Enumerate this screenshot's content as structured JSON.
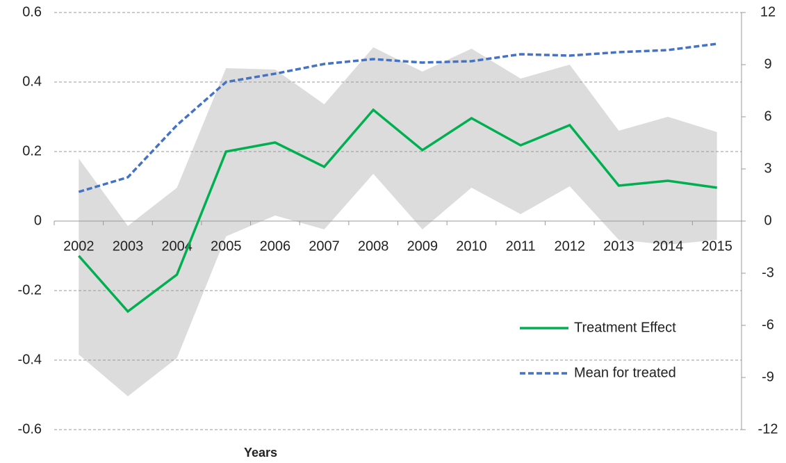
{
  "chart_data": {
    "type": "line",
    "x_label": "Years",
    "categories": [
      "2002",
      "2003",
      "2004",
      "2005",
      "2006",
      "2007",
      "2008",
      "2009",
      "2010",
      "2011",
      "2012",
      "2013",
      "2014",
      "2015"
    ],
    "band": {
      "color": "#dcdcdc",
      "upper": [
        0.18,
        -0.014,
        0.096,
        0.44,
        0.436,
        0.336,
        0.5,
        0.43,
        0.496,
        0.41,
        0.45,
        0.26,
        0.3,
        0.256
      ],
      "lower": [
        -0.384,
        -0.504,
        -0.394,
        -0.044,
        0.016,
        -0.024,
        0.136,
        -0.024,
        0.096,
        0.02,
        0.1,
        -0.054,
        -0.068,
        -0.054
      ]
    },
    "series": [
      {
        "name": "Treatment Effect",
        "color": "#00b050",
        "dash": false,
        "values": [
          -0.1,
          -0.26,
          -0.154,
          0.2,
          0.226,
          0.156,
          0.32,
          0.204,
          0.296,
          0.218,
          0.276,
          0.102,
          0.116,
          0.096
        ]
      },
      {
        "name": "Mean for treated",
        "color": "#4472c4",
        "dash": true,
        "axis": "y2",
        "values": [
          1.68,
          2.52,
          5.52,
          8.0,
          8.48,
          9.04,
          9.32,
          9.12,
          9.2,
          9.6,
          9.52,
          9.72,
          9.84,
          10.2
        ]
      }
    ],
    "ylim": [
      -0.6,
      0.6
    ],
    "yticks": [
      -0.6,
      -0.4,
      -0.2,
      0,
      0.2,
      0.4,
      0.6
    ],
    "y2lim": [
      -12,
      12
    ],
    "y2ticks": [
      -12,
      -9,
      -6,
      -3,
      0,
      3,
      6,
      9,
      12
    ],
    "grid": true,
    "legend": "lower right"
  }
}
